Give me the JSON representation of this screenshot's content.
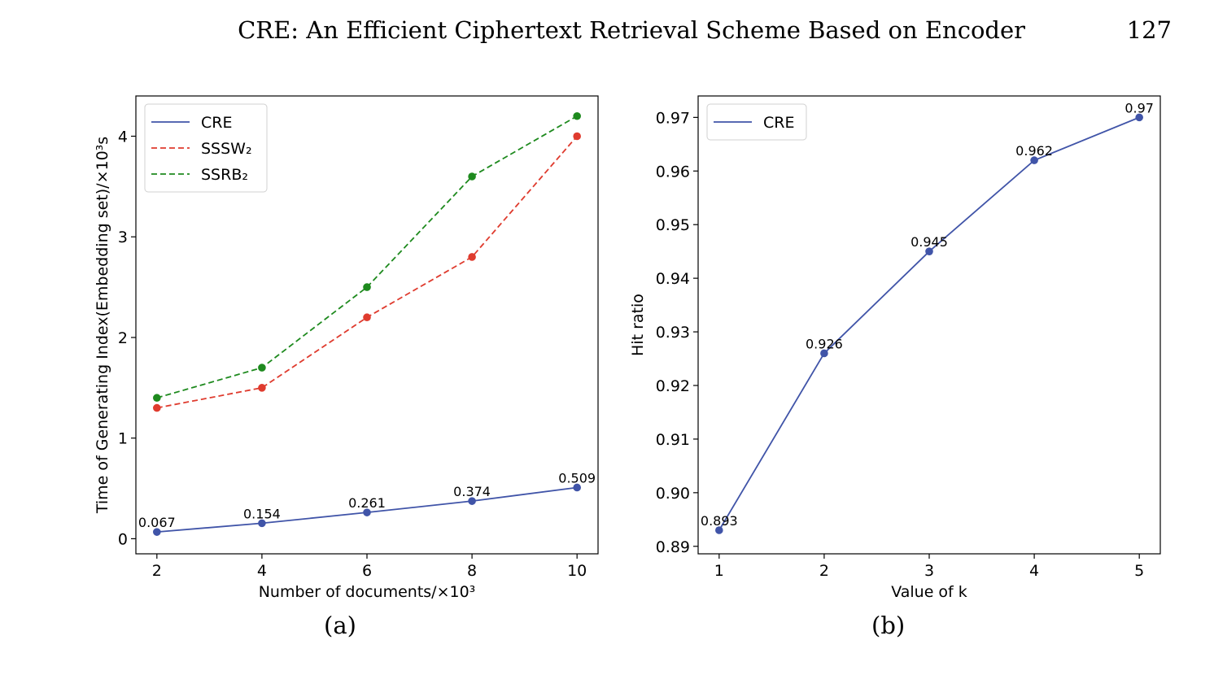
{
  "header": {
    "title": "CRE: An Efficient Ciphertext Retrieval Scheme Based on Encoder",
    "page_number": "127"
  },
  "captions": [
    "(a)",
    "(b)"
  ],
  "colors": {
    "cre": "#4054a8",
    "sssw2": "#df3b2e",
    "ssrb2": "#1e8a1e"
  },
  "chart_data": [
    {
      "type": "line",
      "xlabel": "Number of documents/×10³",
      "ylabel": "Time of Generating Index(Embedding set)/×10³s",
      "x": [
        2,
        4,
        6,
        8,
        10
      ],
      "xticks": [
        "2",
        "4",
        "6",
        "8",
        "10"
      ],
      "yticks": [
        "0",
        "1",
        "2",
        "3",
        "4"
      ],
      "xlim": [
        1.6,
        10.4
      ],
      "ylim": [
        -0.15,
        4.4
      ],
      "legend_position": "top-left",
      "grid": false,
      "series": [
        {
          "name": "CRE",
          "values": [
            0.067,
            0.154,
            0.261,
            0.374,
            0.509
          ],
          "labels": [
            "0.067",
            "0.154",
            "0.261",
            "0.374",
            "0.509"
          ],
          "style": "solid",
          "color": "#4054a8"
        },
        {
          "name": "SSSW₂",
          "values": [
            1.3,
            1.5,
            2.2,
            2.8,
            4.0
          ],
          "style": "dashed",
          "color": "#df3b2e"
        },
        {
          "name": "SSRB₂",
          "values": [
            1.4,
            1.7,
            2.5,
            3.6,
            4.2
          ],
          "style": "dashed",
          "color": "#1e8a1e"
        }
      ]
    },
    {
      "type": "line",
      "xlabel": "Value of k",
      "ylabel": "Hit ratio",
      "x": [
        1,
        2,
        3,
        4,
        5
      ],
      "xticks": [
        "1",
        "2",
        "3",
        "4",
        "5"
      ],
      "yticks": [
        "0.89",
        "0.90",
        "0.91",
        "0.92",
        "0.93",
        "0.94",
        "0.95",
        "0.96",
        "0.97"
      ],
      "xlim": [
        0.8,
        5.2
      ],
      "ylim": [
        0.8886,
        0.974
      ],
      "legend_position": "top-left",
      "grid": false,
      "series": [
        {
          "name": "CRE",
          "values": [
            0.893,
            0.926,
            0.945,
            0.962,
            0.97
          ],
          "labels": [
            "0.893",
            "0.926",
            "0.945",
            "0.962",
            "0.97"
          ],
          "style": "solid",
          "color": "#4054a8"
        }
      ]
    }
  ]
}
